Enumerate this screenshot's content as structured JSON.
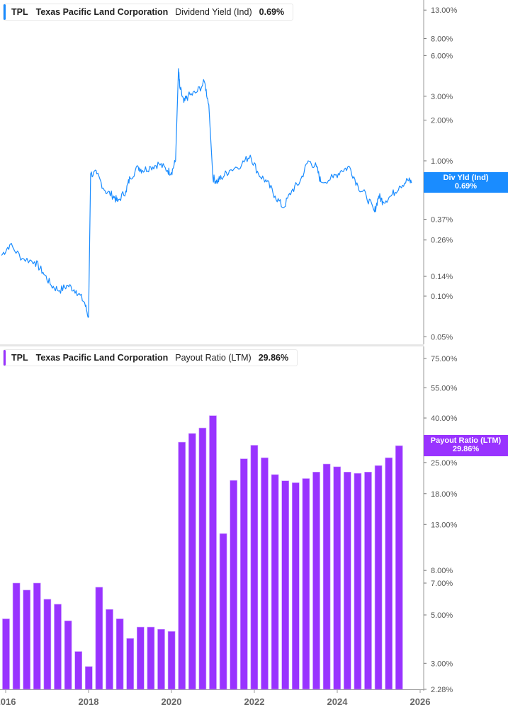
{
  "top_panel": {
    "legend": {
      "ticker": "TPL",
      "company": "Texas Pacific Land Corporation",
      "metric": "Dividend Yield (Ind)",
      "value": "0.69%",
      "color": "#1a8cff"
    },
    "tag": {
      "label": "Div Yld (Ind)",
      "value": "0.69%",
      "color": "#1a8cff"
    },
    "y_ticks": [
      "13.00%",
      "8.00%",
      "6.00%",
      "3.00%",
      "2.00%",
      "1.00%",
      "0.69%",
      "0.37%",
      "0.26%",
      "0.14%",
      "0.10%",
      "0.05%"
    ]
  },
  "bottom_panel": {
    "legend": {
      "ticker": "TPL",
      "company": "Texas Pacific Land Corporation",
      "metric": "Payout Ratio (LTM)",
      "value": "29.86%",
      "color": "#9933ff"
    },
    "tag": {
      "label": "Payout Ratio (LTM)",
      "value": "29.86%",
      "color": "#9933ff"
    },
    "y_ticks": [
      "75.00%",
      "55.00%",
      "40.00%",
      "25.00%",
      "18.00%",
      "13.00%",
      "8.00%",
      "7.00%",
      "5.00%",
      "3.00%",
      "2.28%"
    ]
  },
  "x_axis": {
    "ticks": [
      "2016",
      "2018",
      "2020",
      "2022",
      "2024",
      "2026"
    ]
  },
  "chart_data": [
    {
      "type": "line",
      "title": "TPL Texas Pacific Land Corporation Dividend Yield (Ind)",
      "xlabel": "",
      "ylabel": "Dividend Yield (Ind) %",
      "yscale": "log",
      "ylim": [
        0.05,
        13
      ],
      "y_ticks": [
        13,
        8,
        6,
        3,
        2,
        1,
        0.69,
        0.37,
        0.26,
        0.14,
        0.1,
        0.05
      ],
      "x": [
        2015.9,
        2016.1,
        2016.4,
        2016.7,
        2016.9,
        2017.1,
        2017.3,
        2017.5,
        2017.7,
        2017.9,
        2018.0,
        2018.05,
        2018.2,
        2018.4,
        2018.6,
        2018.7,
        2018.9,
        2019.0,
        2019.2,
        2019.3,
        2019.5,
        2019.7,
        2019.9,
        2020.0,
        2020.1,
        2020.17,
        2020.2,
        2020.3,
        2020.4,
        2020.6,
        2020.8,
        2020.9,
        2021.0,
        2021.1,
        2021.2,
        2021.4,
        2021.7,
        2021.9,
        2022.1,
        2022.3,
        2022.5,
        2022.7,
        2022.9,
        2023.1,
        2023.3,
        2023.5,
        2023.6,
        2023.9,
        2024.1,
        2024.3,
        2024.5,
        2024.7,
        2024.9,
        2025.0,
        2025.1,
        2025.3,
        2025.5,
        2025.7,
        2025.8
      ],
      "values": [
        0.2,
        0.24,
        0.19,
        0.18,
        0.15,
        0.12,
        0.11,
        0.12,
        0.11,
        0.09,
        0.07,
        0.8,
        0.8,
        0.6,
        0.55,
        0.5,
        0.6,
        0.75,
        0.9,
        0.85,
        0.9,
        0.95,
        0.85,
        0.82,
        1.0,
        4.8,
        3.5,
        2.7,
        3.0,
        3.2,
        3.8,
        2.6,
        0.75,
        0.7,
        0.75,
        0.85,
        0.95,
        1.1,
        0.8,
        0.7,
        0.55,
        0.45,
        0.6,
        0.7,
        1.0,
        0.9,
        0.7,
        0.75,
        0.85,
        0.9,
        0.65,
        0.55,
        0.42,
        0.55,
        0.5,
        0.55,
        0.65,
        0.72,
        0.69
      ],
      "last_value": 0.69,
      "color": "#1a8cff"
    },
    {
      "type": "bar",
      "title": "TPL Texas Pacific Land Corporation Payout Ratio (LTM)",
      "xlabel": "",
      "ylabel": "Payout Ratio (LTM) %",
      "yscale": "log",
      "ylim": [
        2.28,
        75
      ],
      "y_ticks": [
        75,
        55,
        40,
        25,
        18,
        13,
        8,
        7,
        5,
        3,
        2.28
      ],
      "categories": [
        "2016 Q1",
        "2016 Q2",
        "2016 Q3",
        "2016 Q4",
        "2017 Q1",
        "2017 Q2",
        "2017 Q3",
        "2017 Q4",
        "2018 Q1",
        "2018 Q2",
        "2018 Q3",
        "2018 Q4",
        "2019 Q1",
        "2019 Q2",
        "2019 Q3",
        "2019 Q4",
        "2020 Q1",
        "2020 Q2",
        "2020 Q3",
        "2020 Q4",
        "2021 Q1",
        "2021 Q2",
        "2021 Q3",
        "2021 Q4",
        "2022 Q1",
        "2022 Q2",
        "2022 Q3",
        "2022 Q4",
        "2023 Q1",
        "2023 Q2",
        "2023 Q3",
        "2023 Q4",
        "2024 Q1",
        "2024 Q2",
        "2024 Q3",
        "2024 Q4",
        "2025 Q1",
        "2025 Q2",
        "2025 Q3"
      ],
      "values": [
        4.8,
        7.0,
        6.5,
        7.0,
        5.9,
        5.6,
        4.7,
        3.4,
        2.9,
        6.7,
        5.3,
        4.8,
        3.9,
        4.4,
        4.4,
        4.3,
        4.2,
        31.0,
        34.0,
        36.0,
        41.0,
        11.8,
        20.7,
        26.0,
        30.0,
        26.3,
        22.0,
        20.6,
        20.2,
        21.1,
        22.6,
        24.6,
        23.9,
        22.6,
        22.3,
        22.6,
        24.2,
        26.3,
        29.86
      ],
      "last_value": 29.86,
      "color": "#9933ff"
    }
  ]
}
